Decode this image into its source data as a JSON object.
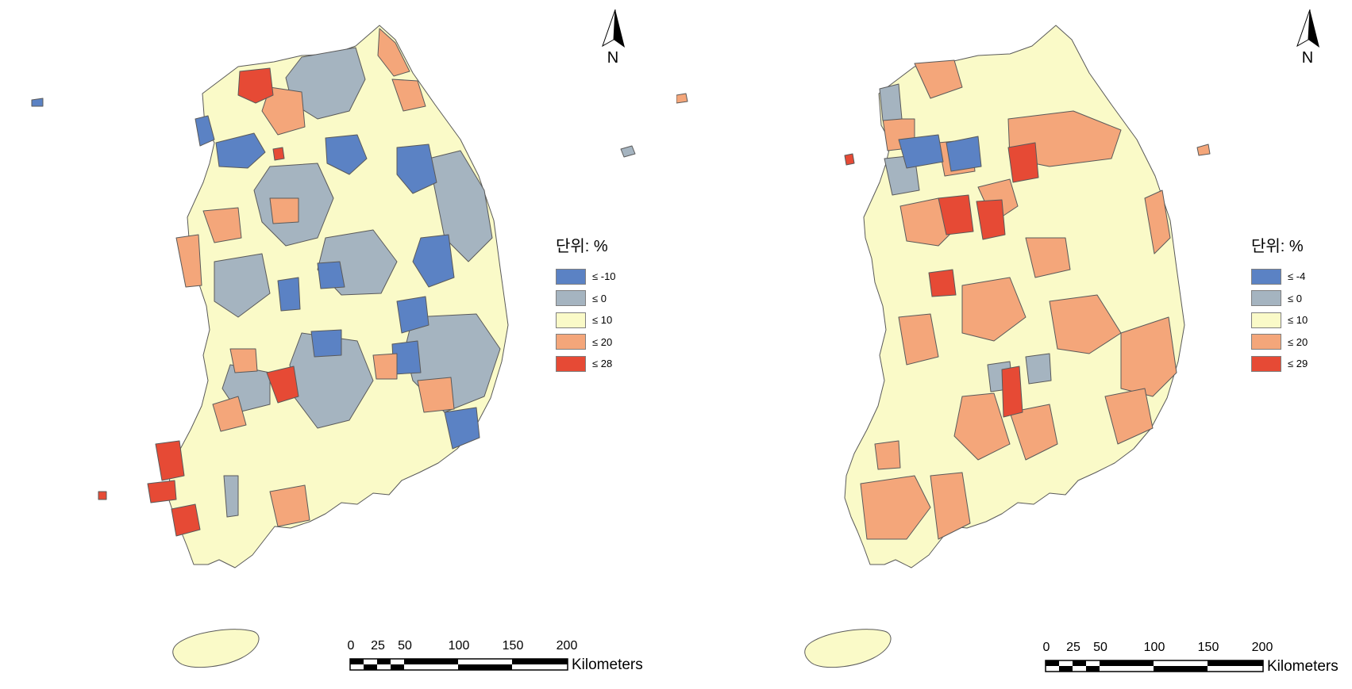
{
  "maps": [
    {
      "legend": {
        "title": "단위: %",
        "items": [
          {
            "label": "≤ -10",
            "color": "#5b82c4"
          },
          {
            "label": "≤ 0",
            "color": "#a5b4c0"
          },
          {
            "label": "≤ 10",
            "color": "#fafac8"
          },
          {
            "label": "≤ 20",
            "color": "#f4a67a"
          },
          {
            "label": "≤ 28",
            "color": "#e64a35"
          }
        ]
      },
      "north_label": "N",
      "scale": {
        "ticks": [
          "0",
          "25",
          "50",
          "100",
          "150",
          "200"
        ],
        "unit": "Kilometers"
      }
    },
    {
      "legend": {
        "title": "단위: %",
        "items": [
          {
            "label": "≤ -4",
            "color": "#5b82c4"
          },
          {
            "label": "≤ 0",
            "color": "#a5b4c0"
          },
          {
            "label": "≤ 10",
            "color": "#fafac8"
          },
          {
            "label": "≤ 20",
            "color": "#f4a67a"
          },
          {
            "label": "≤ 29",
            "color": "#e64a35"
          }
        ]
      },
      "north_label": "N",
      "scale": {
        "ticks": [
          "0",
          "25",
          "50",
          "100",
          "150",
          "200"
        ],
        "unit": "Kilometers"
      }
    }
  ]
}
